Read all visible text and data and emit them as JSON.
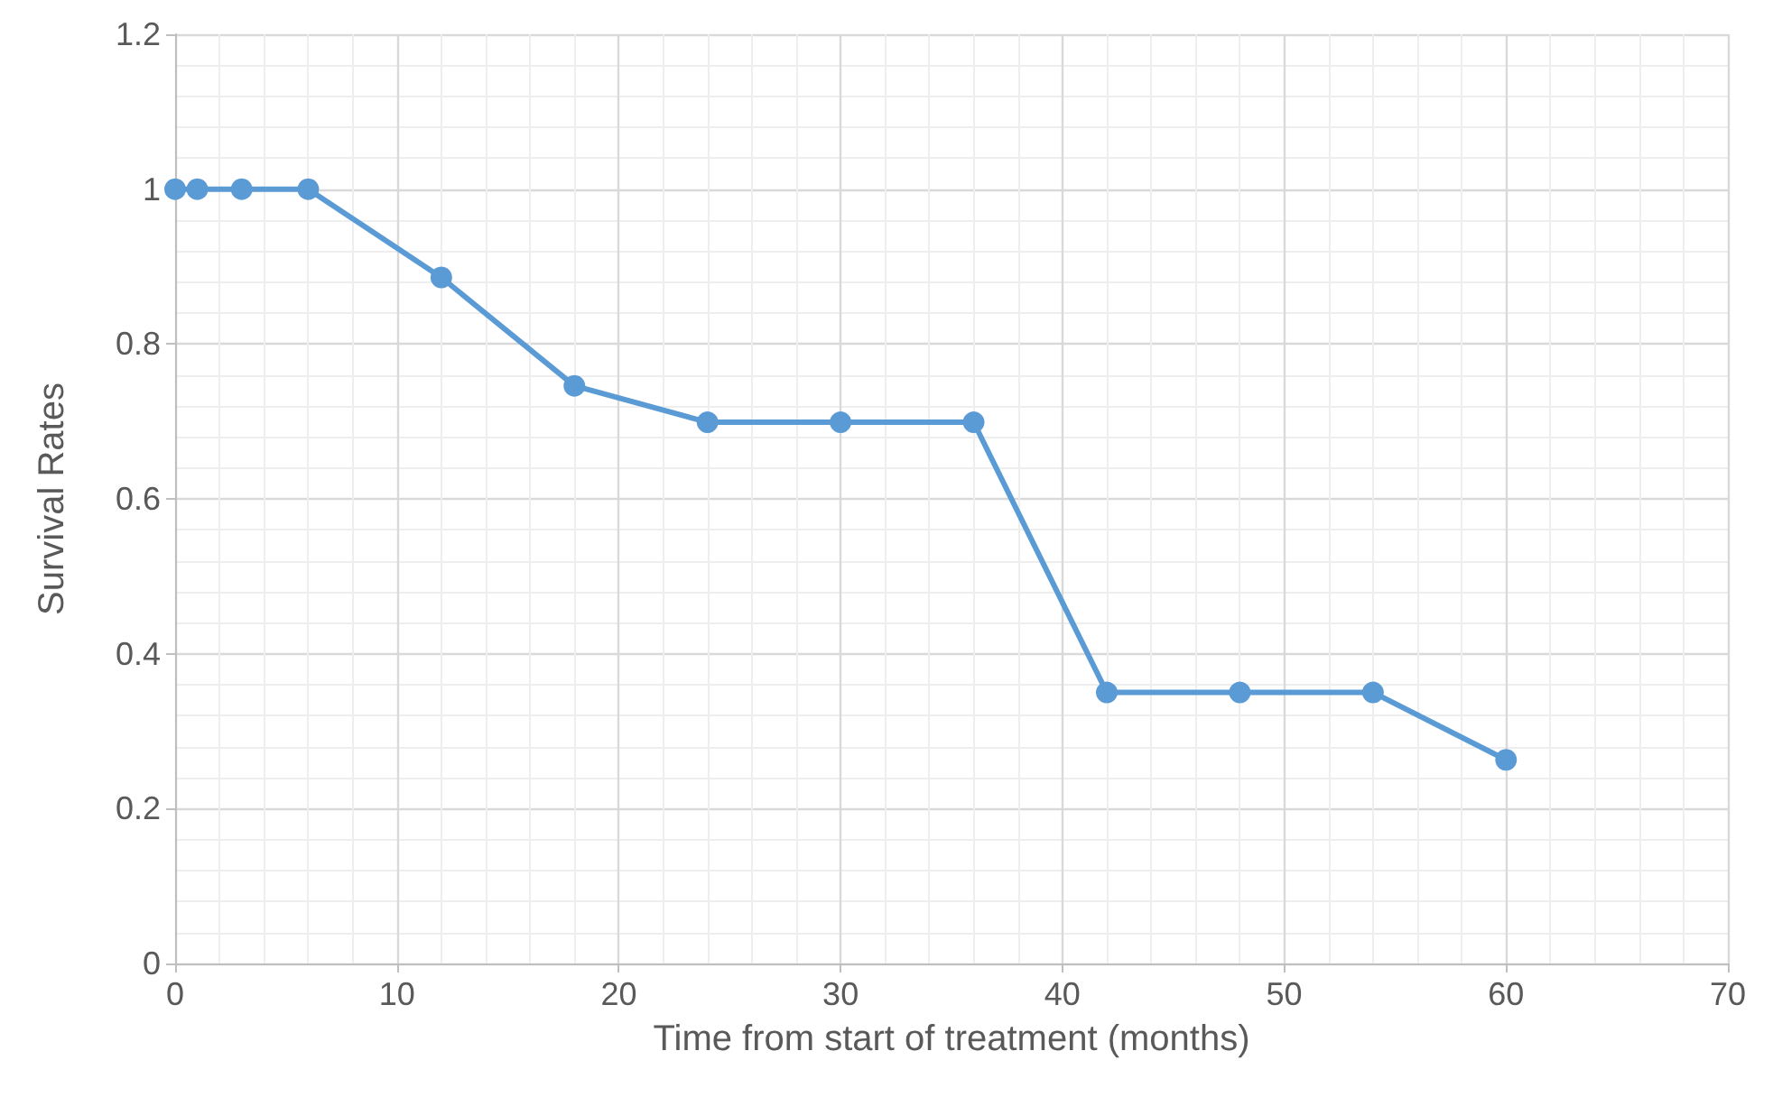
{
  "chart_data": {
    "type": "line",
    "xlabel": "Time from start of treatment (months)",
    "ylabel": "Survival Rates",
    "x": [
      0,
      1,
      3,
      6,
      12,
      18,
      24,
      30,
      36,
      42,
      48,
      54,
      60
    ],
    "series": [
      {
        "color": "#5b9bd5",
        "values": [
          1,
          1,
          1,
          1,
          0.886,
          0.746,
          0.699,
          0.699,
          0.699,
          0.35,
          0.35,
          0.35,
          0.263
        ]
      }
    ],
    "xlim": [
      0,
      70
    ],
    "xticks": [
      0,
      10,
      20,
      30,
      40,
      50,
      60,
      70
    ],
    "ylim": [
      0,
      1.2
    ],
    "yticks": [
      0,
      0.2,
      0.4,
      0.6,
      0.8,
      1,
      1.2
    ],
    "grid": true,
    "marker": "circle",
    "line_style": "solid"
  }
}
